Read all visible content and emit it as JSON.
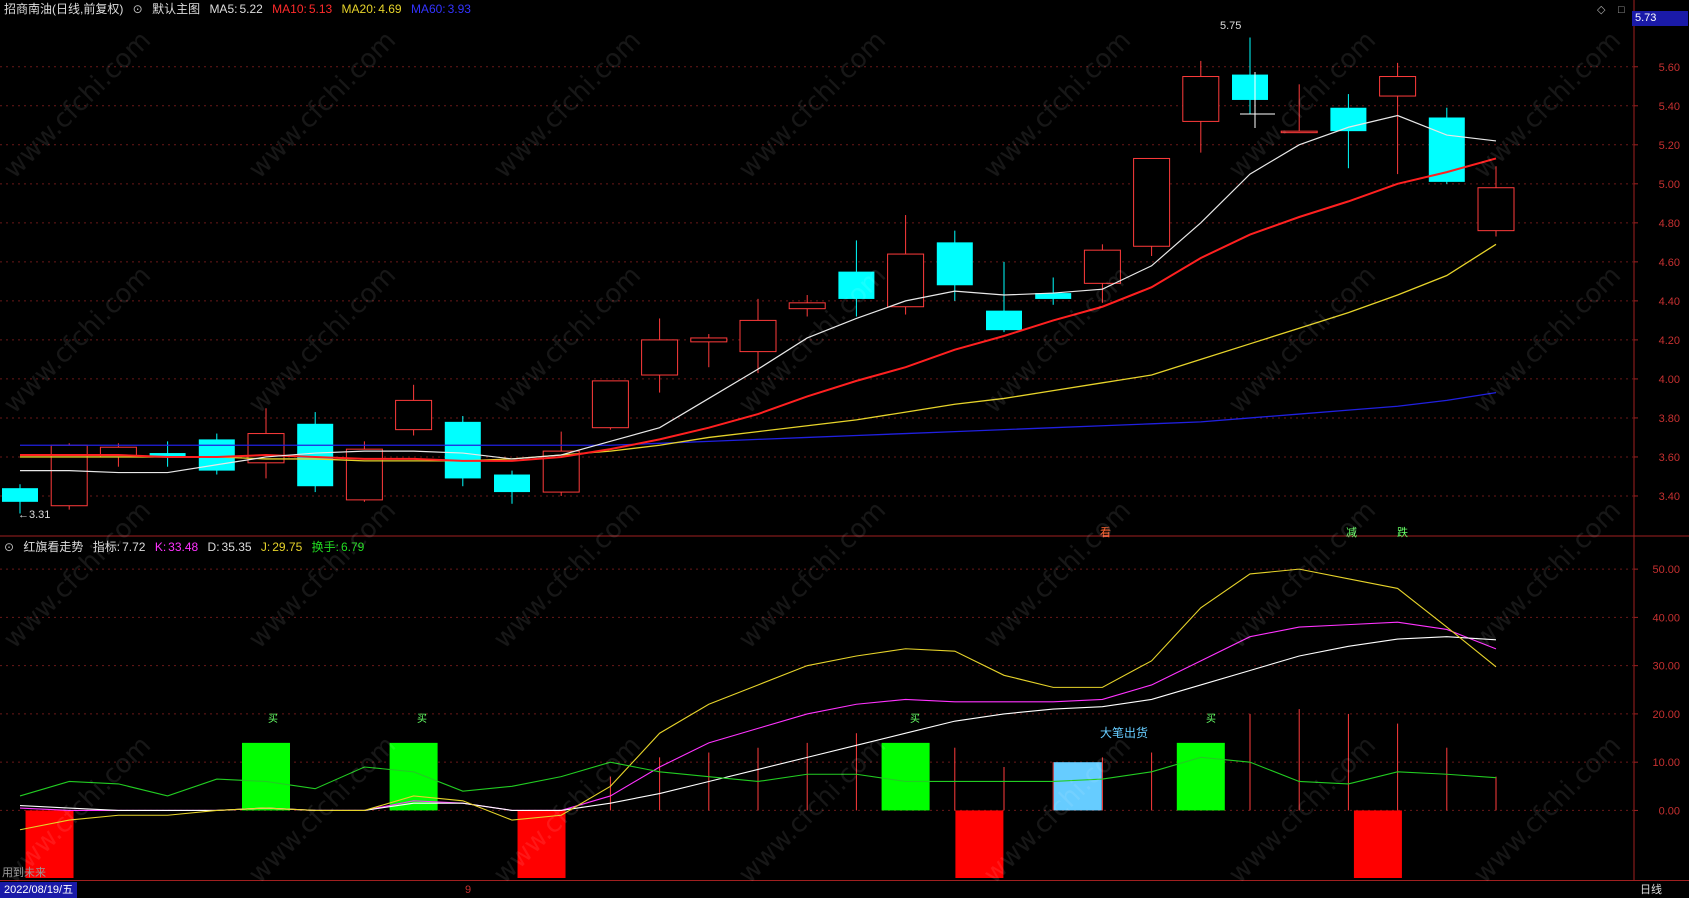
{
  "main_header": {
    "stock": "招商南油(日线,前复权)",
    "chart_mode": "默认主图",
    "ma5_label": "MA5:",
    "ma5_value": "5.22",
    "ma10_label": "MA10:",
    "ma10_value": "5.13",
    "ma20_label": "MA20:",
    "ma20_value": "4.69",
    "ma60_label": "MA60:",
    "ma60_value": "3.93",
    "current_price": "5.73"
  },
  "sub_header": {
    "indicator_name": "红旗看走势",
    "zhibiao_label": "指标:",
    "zhibiao_value": "7.72",
    "k_label": "K:",
    "k_value": "33.48",
    "d_label": "D:",
    "d_value": "35.35",
    "j_label": "J:",
    "j_value": "29.75",
    "turnover_label": "换手:",
    "turnover_value": "6.79"
  },
  "annotations": {
    "high_label": "5.75",
    "low_label": "←3.31",
    "big_sell": "大笔出货",
    "signal_1": "看",
    "signal_2": "减",
    "signal_3": "跌",
    "buy_marker": "买"
  },
  "status_bar": {
    "date": "2022/08/19/五",
    "marker": "9",
    "period": "日线",
    "hint": "用到未来"
  },
  "watermark": "www.cfchi.com",
  "colors": {
    "up": "#ff3b3b",
    "down": "#00ffff",
    "ma5": "#e8e8e8",
    "ma10": "#ff2020",
    "ma20": "#e6d32a",
    "ma60": "#2020e0",
    "k": "#ff33ff",
    "d": "#ffffff",
    "j": "#e6d32a",
    "turnover": "#22cc22"
  },
  "chart_data": [
    {
      "type": "candlestick",
      "title": "",
      "ylim": [
        3.2,
        5.85
      ],
      "yticks": [
        "5.60",
        "5.40",
        "5.20",
        "5.00",
        "4.80",
        "4.60",
        "4.40",
        "4.20",
        "4.00",
        "3.80",
        "3.60",
        "3.40"
      ],
      "candles": [
        {
          "o": 3.44,
          "h": 3.46,
          "l": 3.31,
          "c": 3.37
        },
        {
          "o": 3.35,
          "h": 3.67,
          "l": 3.33,
          "c": 3.66
        },
        {
          "o": 3.6,
          "h": 3.67,
          "l": 3.55,
          "c": 3.65
        },
        {
          "o": 3.62,
          "h": 3.68,
          "l": 3.55,
          "c": 3.6
        },
        {
          "o": 3.69,
          "h": 3.72,
          "l": 3.51,
          "c": 3.53
        },
        {
          "o": 3.57,
          "h": 3.85,
          "l": 3.49,
          "c": 3.72
        },
        {
          "o": 3.77,
          "h": 3.83,
          "l": 3.42,
          "c": 3.45
        },
        {
          "o": 3.38,
          "h": 3.68,
          "l": 3.37,
          "c": 3.64
        },
        {
          "o": 3.74,
          "h": 3.97,
          "l": 3.71,
          "c": 3.89
        },
        {
          "o": 3.78,
          "h": 3.81,
          "l": 3.45,
          "c": 3.49
        },
        {
          "o": 3.51,
          "h": 3.53,
          "l": 3.36,
          "c": 3.42
        },
        {
          "o": 3.42,
          "h": 3.73,
          "l": 3.4,
          "c": 3.63
        },
        {
          "o": 3.75,
          "h": 3.99,
          "l": 3.74,
          "c": 3.99
        },
        {
          "o": 4.02,
          "h": 4.31,
          "l": 3.93,
          "c": 4.2
        },
        {
          "o": 4.19,
          "h": 4.23,
          "l": 4.06,
          "c": 4.21
        },
        {
          "o": 4.14,
          "h": 4.41,
          "l": 4.03,
          "c": 4.3
        },
        {
          "o": 4.36,
          "h": 4.43,
          "l": 4.32,
          "c": 4.39
        },
        {
          "o": 4.55,
          "h": 4.71,
          "l": 4.32,
          "c": 4.41
        },
        {
          "o": 4.37,
          "h": 4.84,
          "l": 4.33,
          "c": 4.64
        },
        {
          "o": 4.7,
          "h": 4.76,
          "l": 4.4,
          "c": 4.48
        },
        {
          "o": 4.35,
          "h": 4.6,
          "l": 4.24,
          "c": 4.25
        },
        {
          "o": 4.44,
          "h": 4.52,
          "l": 4.38,
          "c": 4.41
        },
        {
          "o": 4.49,
          "h": 4.69,
          "l": 4.39,
          "c": 4.66
        },
        {
          "o": 4.68,
          "h": 5.13,
          "l": 4.63,
          "c": 5.13
        },
        {
          "o": 5.32,
          "h": 5.63,
          "l": 5.16,
          "c": 5.55
        },
        {
          "o": 5.56,
          "h": 5.75,
          "l": 5.36,
          "c": 5.43
        },
        {
          "o": 5.27,
          "h": 5.51,
          "l": 5.27,
          "c": 5.27
        },
        {
          "o": 5.39,
          "h": 5.46,
          "l": 5.08,
          "c": 5.27
        },
        {
          "o": 5.45,
          "h": 5.62,
          "l": 5.05,
          "c": 5.55
        },
        {
          "o": 5.34,
          "h": 5.39,
          "l": 5.0,
          "c": 5.01
        },
        {
          "o": 4.76,
          "h": 5.09,
          "l": 4.73,
          "c": 4.98
        }
      ],
      "ma5": [
        3.53,
        3.53,
        3.52,
        3.52,
        3.56,
        3.6,
        3.62,
        3.63,
        3.63,
        3.62,
        3.59,
        3.61,
        3.68,
        3.75,
        3.9,
        4.05,
        4.21,
        4.31,
        4.4,
        4.45,
        4.43,
        4.44,
        4.46,
        4.58,
        4.8,
        5.05,
        5.2,
        5.29,
        5.35,
        5.25,
        5.22
      ],
      "ma10": [
        3.61,
        3.61,
        3.61,
        3.6,
        3.6,
        3.61,
        3.6,
        3.59,
        3.59,
        3.58,
        3.58,
        3.6,
        3.64,
        3.69,
        3.75,
        3.82,
        3.91,
        3.99,
        4.06,
        4.15,
        4.22,
        4.3,
        4.37,
        4.47,
        4.62,
        4.74,
        4.83,
        4.91,
        5.0,
        5.06,
        5.13
      ],
      "ma20": [
        3.6,
        3.6,
        3.6,
        3.6,
        3.6,
        3.59,
        3.59,
        3.58,
        3.58,
        3.58,
        3.59,
        3.61,
        3.63,
        3.66,
        3.7,
        3.73,
        3.76,
        3.79,
        3.83,
        3.87,
        3.9,
        3.94,
        3.98,
        4.02,
        4.1,
        4.18,
        4.26,
        4.34,
        4.43,
        4.53,
        4.69
      ],
      "ma60": [
        3.66,
        3.66,
        3.66,
        3.66,
        3.66,
        3.66,
        3.66,
        3.66,
        3.66,
        3.66,
        3.66,
        3.66,
        3.66,
        3.67,
        3.68,
        3.69,
        3.7,
        3.71,
        3.72,
        3.73,
        3.74,
        3.75,
        3.76,
        3.77,
        3.78,
        3.8,
        3.82,
        3.84,
        3.86,
        3.89,
        3.93
      ]
    },
    {
      "type": "line",
      "title": "",
      "ylim": [
        -14,
        55
      ],
      "yticks": [
        "50.00",
        "40.00",
        "30.00",
        "20.00",
        "10.00",
        "0.00"
      ],
      "series": [
        {
          "name": "K",
          "values": [
            0.5,
            0,
            0,
            0,
            0,
            0.5,
            0,
            0,
            2,
            1.5,
            0,
            0,
            3,
            9,
            14,
            17,
            20,
            22,
            23,
            22.5,
            22.5,
            22.5,
            23,
            26,
            31,
            36,
            38,
            38.5,
            39,
            37.5,
            33.48
          ]
        },
        {
          "name": "D",
          "values": [
            1,
            0.5,
            0,
            0,
            0,
            0.5,
            0,
            0,
            1.5,
            1.5,
            0,
            0,
            1.5,
            3.5,
            6,
            8.5,
            11,
            13.5,
            16,
            18.5,
            20,
            21,
            21.5,
            23,
            26,
            29,
            32,
            34,
            35.5,
            36,
            35.35
          ]
        },
        {
          "name": "J",
          "values": [
            -4,
            -2,
            -1,
            -1,
            0,
            0.5,
            0,
            0,
            3,
            2,
            -2,
            -1,
            5,
            16,
            22,
            26,
            30,
            32,
            33.5,
            33,
            28,
            25.5,
            25.5,
            31,
            42,
            49,
            50,
            48,
            46,
            38,
            29.75
          ]
        },
        {
          "name": "换手",
          "values": [
            3,
            6,
            5.5,
            3,
            6.5,
            6,
            4.5,
            9,
            8,
            4,
            5,
            7,
            10,
            8,
            7,
            6,
            7.5,
            7.5,
            6,
            6,
            6,
            6,
            6.5,
            8,
            11,
            10,
            6,
            5.5,
            8,
            7.5,
            6.79
          ]
        }
      ],
      "red_spikes": [
        0,
        0,
        0,
        0,
        0,
        0,
        0,
        0,
        0,
        0,
        0,
        0,
        7,
        11,
        12,
        13,
        14,
        16,
        12,
        13,
        9,
        10,
        11,
        12,
        11,
        20,
        21,
        20,
        18,
        13,
        7
      ],
      "bars": [
        {
          "index": 0.6,
          "from": 0,
          "to": -14,
          "color": "#ff0000"
        },
        {
          "index": 5,
          "from": 0,
          "to": 14,
          "color": "#00ff00"
        },
        {
          "index": 8,
          "from": 0,
          "to": 14,
          "color": "#00ff00"
        },
        {
          "index": 10.6,
          "from": 0,
          "to": -14,
          "color": "#ff0000"
        },
        {
          "index": 18,
          "from": 0,
          "to": 14,
          "color": "#00ff00"
        },
        {
          "index": 19.5,
          "from": 0,
          "to": -14,
          "color": "#ff0000"
        },
        {
          "index": 21.5,
          "from": 0,
          "to": 10,
          "color": "#66ccff"
        },
        {
          "index": 24,
          "from": 0,
          "to": 14,
          "color": "#00ff00"
        },
        {
          "index": 27.6,
          "from": 0,
          "to": -14,
          "color": "#ff0000"
        }
      ]
    }
  ]
}
